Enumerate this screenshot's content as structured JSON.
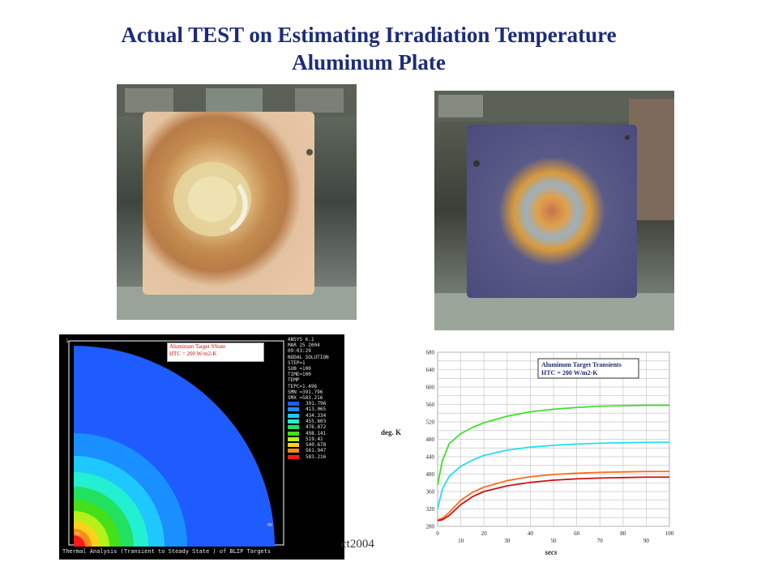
{
  "slide": {
    "title_line1": "Actual TEST on Estimating Irradiation Temperature",
    "title_line2": "Aluminum Plate",
    "footer_fragment": "ct2004",
    "title_color": "#1d2b7a"
  },
  "fea_plot": {
    "window_number": "1",
    "legend_line1": "Aluminum Target SState",
    "legend_line2": "HTC = 200 W/m2-K",
    "info_lines": [
      "ANSYS 6.1",
      "MAR 25 2004",
      "09:03:29",
      "NODAL SOLUTION",
      "STEP=1",
      "SUB =100",
      "TIME=100",
      "TEMP",
      "TEPC=1.496",
      "SMN =391.796",
      "SMX =583.216"
    ],
    "contour_levels": [
      {
        "value": "391.796",
        "color": "#1f5cff"
      },
      {
        "value": "413.065",
        "color": "#1a8fff"
      },
      {
        "value": "434.334",
        "color": "#1ec8ff"
      },
      {
        "value": "455.603",
        "color": "#22f0d0"
      },
      {
        "value": "476.872",
        "color": "#22e060"
      },
      {
        "value": "498.141",
        "color": "#44e01a"
      },
      {
        "value": "519.41",
        "color": "#b4f01a"
      },
      {
        "value": "540.678",
        "color": "#ffd21a"
      },
      {
        "value": "561.947",
        "color": "#ff8a1a"
      },
      {
        "value": "583.216",
        "color": "#ff1a1a"
      }
    ],
    "mx_label": "MX",
    "mn_label": "MN",
    "footer": "Thermal Analysis (Transient to Steady State ) of BLIP Targets"
  },
  "chart_data": {
    "type": "line",
    "title": "Aluminum Target Transients",
    "subtitle": "HTC = 200 W/m2-K",
    "xlabel": "secs",
    "ylabel": "deg. K",
    "xlim": [
      0,
      100
    ],
    "ylim": [
      280,
      680
    ],
    "xticks": [
      0,
      10,
      20,
      30,
      40,
      50,
      60,
      70,
      80,
      90,
      100
    ],
    "yticks": [
      280,
      300,
      320,
      340,
      360,
      380,
      400,
      420,
      440,
      460,
      480,
      500,
      520,
      540,
      560,
      580,
      600,
      620,
      640,
      660,
      680
    ],
    "ytick_labels": [
      280,
      320,
      360,
      400,
      440,
      480,
      520,
      560,
      600,
      640,
      680
    ],
    "grid": true,
    "x": [
      0,
      2,
      5,
      10,
      15,
      20,
      30,
      40,
      50,
      60,
      70,
      80,
      90,
      100
    ],
    "series": [
      {
        "color": "#3ee02a",
        "values": [
          375,
          430,
          470,
          493,
          507,
          518,
          533,
          543,
          549,
          553,
          556,
          557,
          558,
          558
        ]
      },
      {
        "color": "#22e0f0",
        "values": [
          320,
          365,
          395,
          418,
          432,
          443,
          455,
          462,
          466,
          469,
          471,
          472,
          473,
          473
        ]
      },
      {
        "color": "#ff6a1a",
        "values": [
          295,
          298,
          312,
          340,
          358,
          370,
          385,
          394,
          399,
          402,
          404,
          405,
          406,
          406
        ]
      },
      {
        "color": "#d01010",
        "values": [
          293,
          295,
          305,
          330,
          348,
          360,
          373,
          381,
          386,
          389,
          391,
          392,
          393,
          393
        ]
      }
    ]
  }
}
